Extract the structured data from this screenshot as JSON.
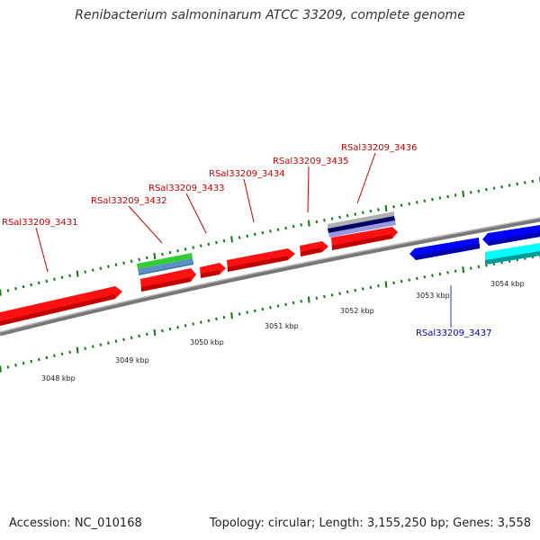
{
  "title": "Renibacterium salmoninarum ATCC 33209, complete genome",
  "footer": {
    "accession": "Accession: NC_010168",
    "summary": "Topology: circular; Length: 3,155,250 bp; Genes: 3,558"
  },
  "colors": {
    "forward_cds": "#ff0000",
    "reverse_cds": "#0000ff",
    "rrna": "#00ffff",
    "label_forward": "#cc0000",
    "label_reverse": "#0000cc",
    "tick": "#117711",
    "backbone": "#808080"
  },
  "kbp_labels": [
    "3048 kbp",
    "3049 kbp",
    "3050 kbp",
    "3051 kbp",
    "3052 kbp",
    "3053 kbp",
    "3054 kbp"
  ],
  "gene_labels": [
    "RSal33209_3431",
    "RSal33209_3432",
    "RSal33209_3433",
    "RSal33209_3434",
    "RSal33209_3435",
    "RSal33209_3436",
    "RSal33209_3437"
  ]
}
